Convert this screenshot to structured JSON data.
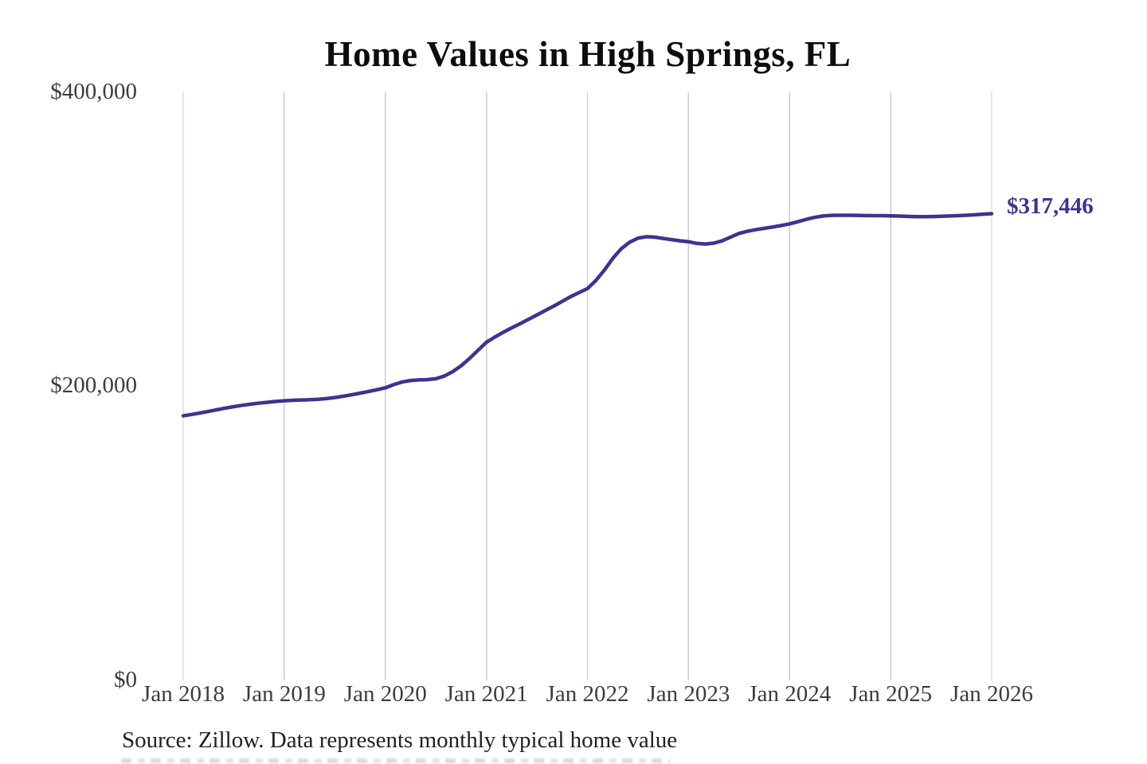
{
  "footer": {
    "source": "Source: Zillow. Data represents monthly typical home value"
  },
  "chart_data": {
    "type": "line",
    "title": "Home Values in High Springs, FL",
    "xlabel": "",
    "ylabel": "",
    "ylim": [
      0,
      400000
    ],
    "grid": "vertical-only",
    "legend_position": "none",
    "end_label": "$317,446",
    "end_value": 317446,
    "accent_color": "#3b3491",
    "gridline_color": "#cccccc",
    "y_tick_labels": [
      "$400,000",
      "$200,000",
      "$0"
    ],
    "y_tick_values": [
      400000,
      200000,
      0
    ],
    "x_tick_labels": [
      "Jan 2018",
      "Jan 2019",
      "Jan 2020",
      "Jan 2021",
      "Jan 2022",
      "Jan 2023",
      "Jan 2024",
      "Jan 2025",
      "Jan 2026"
    ],
    "x_start": "Jan 2018",
    "x_interval": "monthly",
    "series": [
      {
        "name": "Monthly typical home value",
        "color": "#3b3491",
        "values": [
          180000,
          180900,
          181900,
          183000,
          184100,
          185200,
          186200,
          187100,
          187900,
          188600,
          189200,
          189800,
          190200,
          190500,
          190700,
          190900,
          191200,
          191700,
          192400,
          193300,
          194300,
          195400,
          196500,
          197700,
          199000,
          201200,
          203000,
          204000,
          204400,
          204600,
          205200,
          207000,
          210000,
          214000,
          219000,
          224500,
          230000,
          233500,
          236800,
          239800,
          242600,
          245600,
          248600,
          251600,
          254600,
          257800,
          261000,
          263800,
          266500,
          272000,
          279000,
          287000,
          293500,
          298000,
          300800,
          301800,
          301500,
          300600,
          299800,
          299000,
          298400,
          297200,
          296800,
          297400,
          299000,
          301500,
          304000,
          305500,
          306600,
          307500,
          308400,
          309400,
          310500,
          312000,
          313600,
          315000,
          315900,
          316300,
          316400,
          316400,
          316300,
          316200,
          316100,
          316100,
          316000,
          315800,
          315600,
          315400,
          315400,
          315500,
          315700,
          315900,
          316100,
          316400,
          316700,
          317100,
          317446
        ]
      }
    ]
  }
}
